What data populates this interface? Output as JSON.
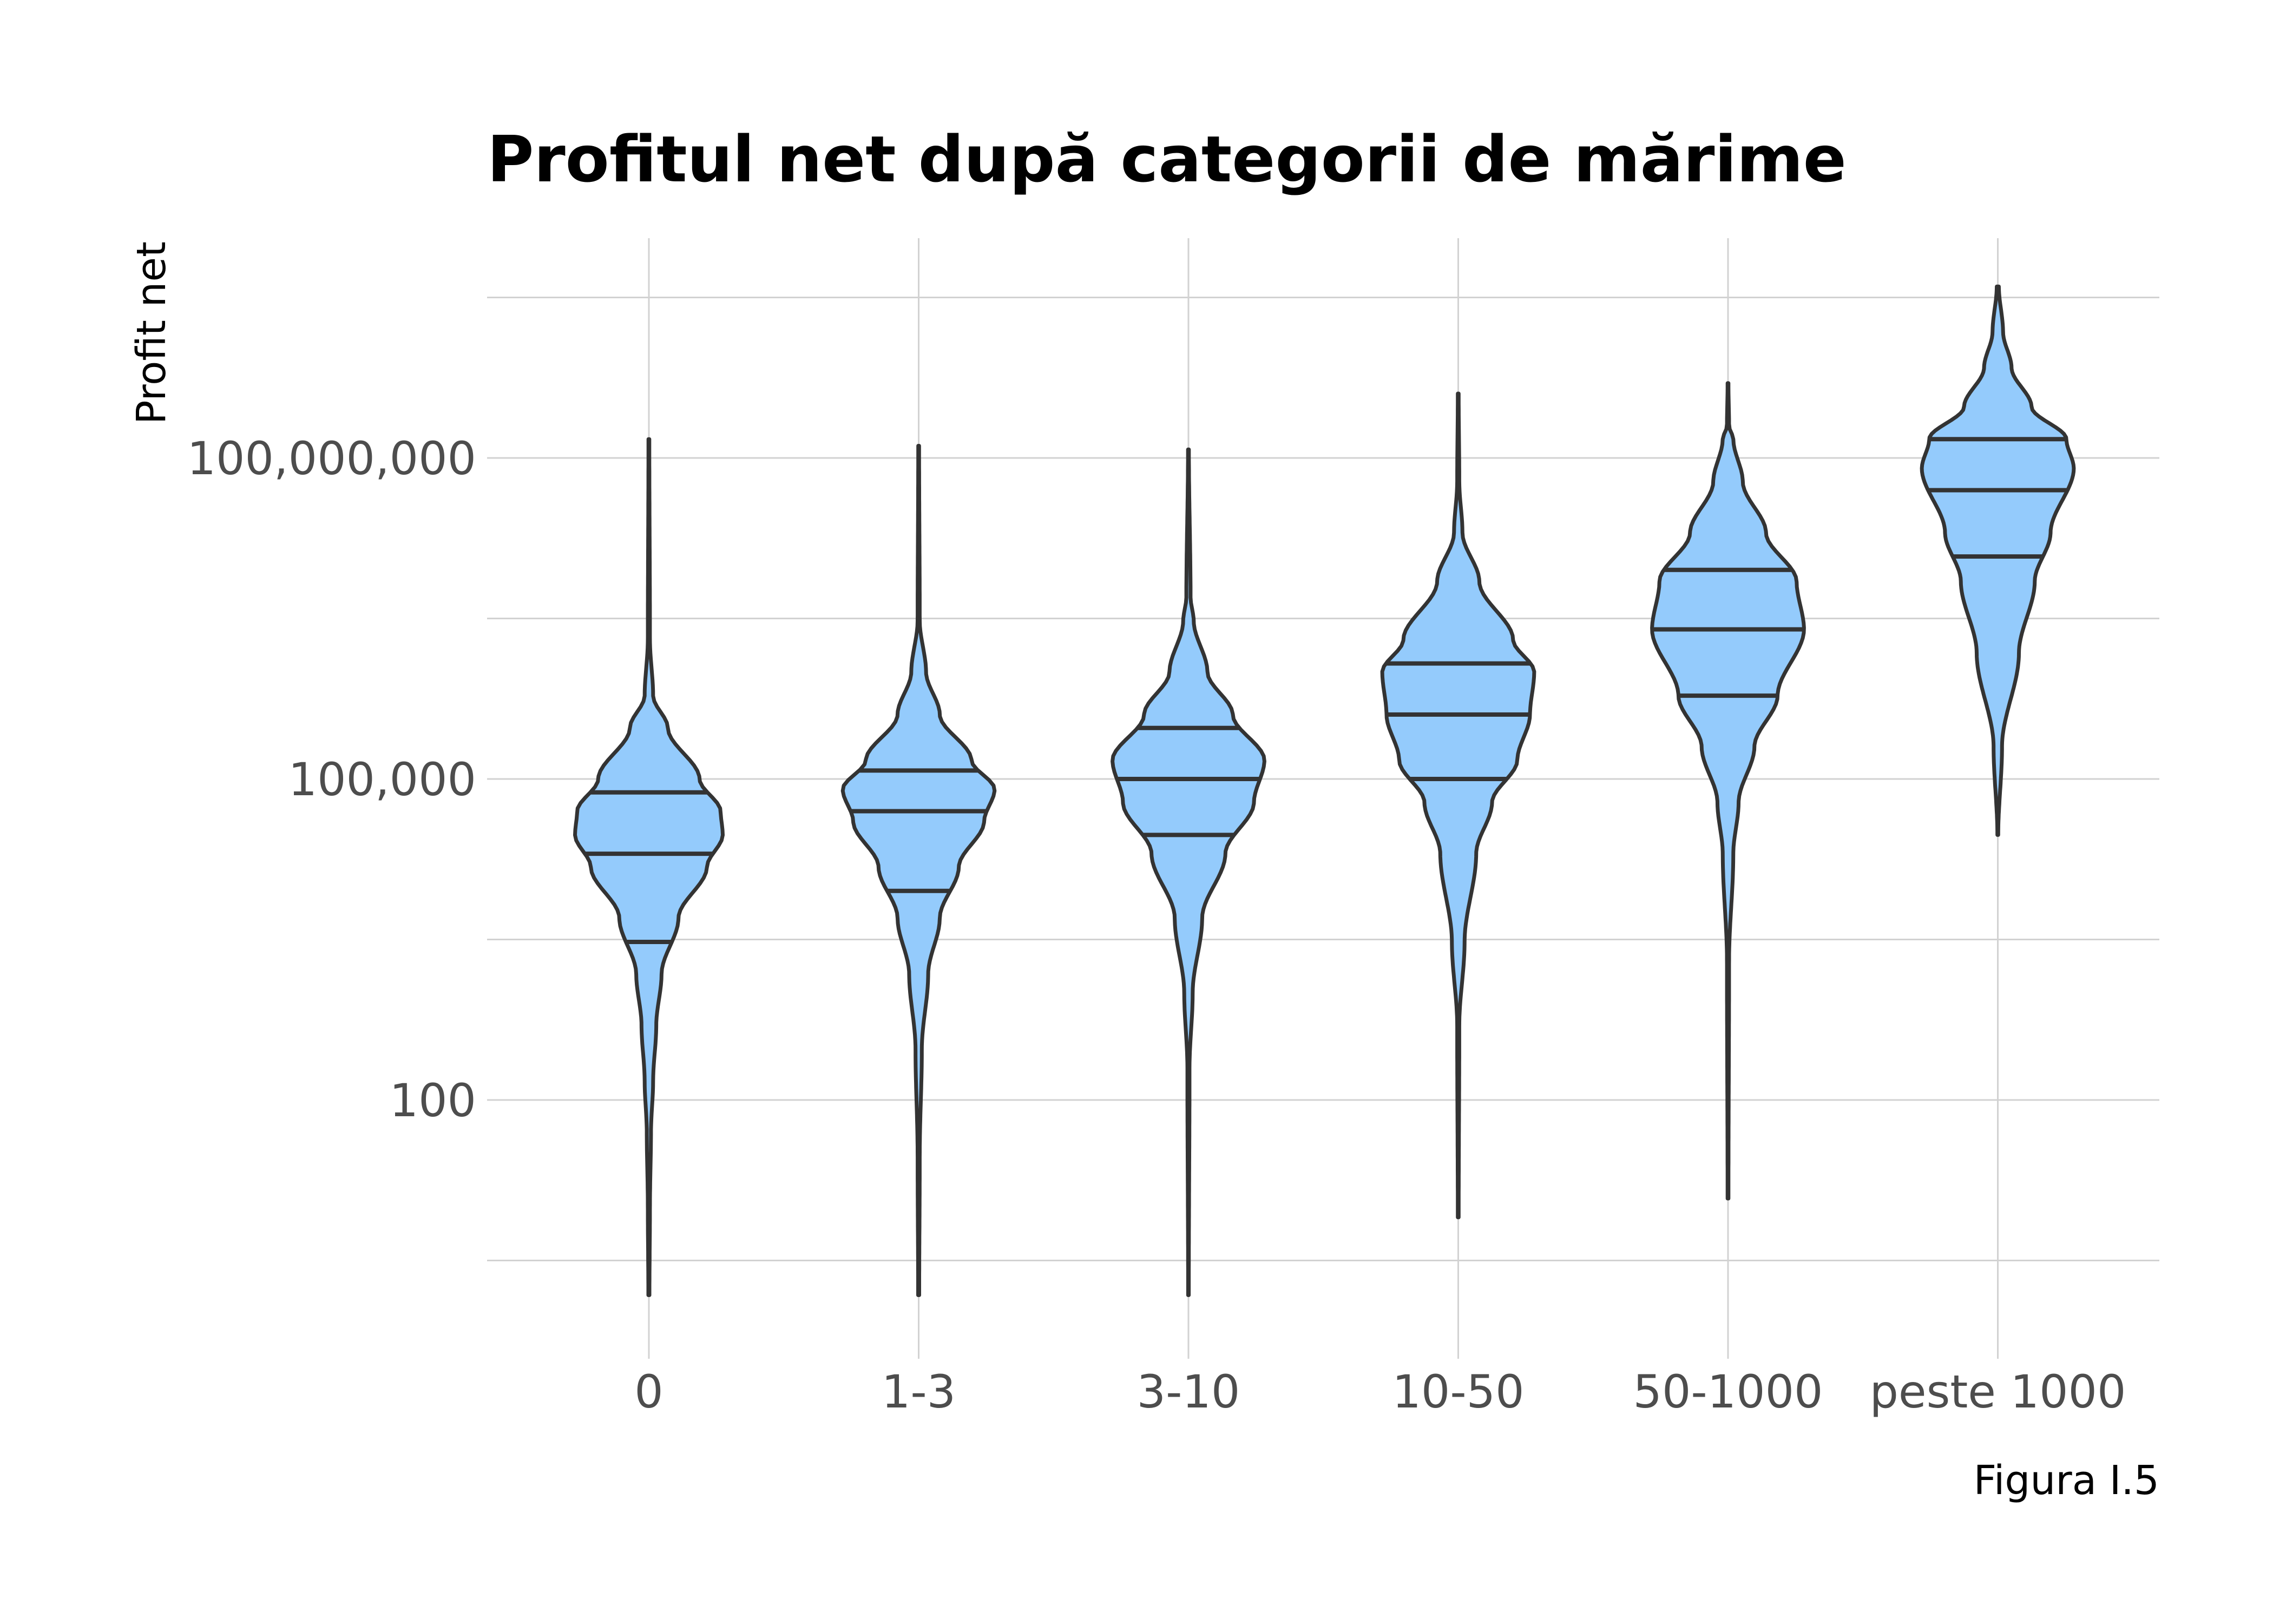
{
  "chart_data": {
    "type": "violin",
    "title": "Profitul net după categorii de mărime",
    "xlabel": "",
    "ylabel": "Profit net",
    "caption": "Figura I.5",
    "y_scale": "log10",
    "ylim": [
      3,
      1000000000
    ],
    "y_ticks": [
      {
        "value": 100,
        "label": "100"
      },
      {
        "value": 100000,
        "label": "100,000"
      },
      {
        "value": 100000000,
        "label": "100,000,000"
      }
    ],
    "y_minor_grid": [
      3.16,
      3162,
      3162000,
      3162000000
    ],
    "grid": true,
    "legend": "none",
    "fill_color": "#94cbfc",
    "outline_color": "#333333",
    "categories": [
      "0",
      "1-3",
      "3-10",
      "10-50",
      "50-1000",
      "peste 1000"
    ],
    "series": [
      {
        "category": "0",
        "min": 1.5,
        "max": 150000000,
        "quantiles": [
          3000,
          20000,
          75000
        ],
        "width_profile": [
          [
            1.5,
            0.005
          ],
          [
            10,
            0.01
          ],
          [
            50,
            0.02
          ],
          [
            150,
            0.04
          ],
          [
            500,
            0.07
          ],
          [
            1500,
            0.12
          ],
          [
            5000,
            0.28
          ],
          [
            15000,
            0.55
          ],
          [
            30000,
            0.7
          ],
          [
            50000,
            0.68
          ],
          [
            100000,
            0.48
          ],
          [
            300000,
            0.18
          ],
          [
            600000,
            0.04
          ],
          [
            2000000,
            0.01
          ],
          [
            150000000,
            0.004
          ]
        ]
      },
      {
        "category": "1-3",
        "min": 1.5,
        "max": 130000000,
        "quantiles": [
          9000,
          50000,
          120000
        ],
        "width_profile": [
          [
            1.5,
            0.005
          ],
          [
            30,
            0.01
          ],
          [
            300,
            0.03
          ],
          [
            1500,
            0.09
          ],
          [
            5000,
            0.2
          ],
          [
            15000,
            0.38
          ],
          [
            40000,
            0.62
          ],
          [
            80000,
            0.72
          ],
          [
            150000,
            0.5
          ],
          [
            400000,
            0.2
          ],
          [
            1000000,
            0.07
          ],
          [
            3000000,
            0.01
          ],
          [
            130000000,
            0.004
          ]
        ]
      },
      {
        "category": "3-10",
        "min": 1.5,
        "max": 120000000,
        "quantiles": [
          30000,
          100000,
          300000
        ],
        "width_profile": [
          [
            1.5,
            0.003
          ],
          [
            200,
            0.01
          ],
          [
            1000,
            0.04
          ],
          [
            5000,
            0.13
          ],
          [
            20000,
            0.35
          ],
          [
            60000,
            0.62
          ],
          [
            150000,
            0.72
          ],
          [
            400000,
            0.42
          ],
          [
            1000000,
            0.18
          ],
          [
            3000000,
            0.05
          ],
          [
            5000000,
            0.02
          ],
          [
            120000000,
            0.004
          ]
        ]
      },
      {
        "category": "10-50",
        "min": 8,
        "max": 400000000,
        "quantiles": [
          100000,
          400000,
          1200000
        ],
        "width_profile": [
          [
            8,
            0.004
          ],
          [
            500,
            0.01
          ],
          [
            3000,
            0.06
          ],
          [
            20000,
            0.17
          ],
          [
            60000,
            0.32
          ],
          [
            150000,
            0.56
          ],
          [
            400000,
            0.68
          ],
          [
            1000000,
            0.72
          ],
          [
            2000000,
            0.52
          ],
          [
            7000000,
            0.2
          ],
          [
            20000000,
            0.04
          ],
          [
            60000000,
            0.01
          ],
          [
            400000000,
            0.004
          ]
        ]
      },
      {
        "category": "50-1000",
        "min": 12,
        "max": 500000000,
        "quantiles": [
          600000,
          2500000,
          9000000
        ],
        "width_profile": [
          [
            12,
            0.004
          ],
          [
            2000,
            0.01
          ],
          [
            20000,
            0.05
          ],
          [
            60000,
            0.1
          ],
          [
            200000,
            0.25
          ],
          [
            600000,
            0.47
          ],
          [
            2500000,
            0.72
          ],
          [
            7000000,
            0.65
          ],
          [
            20000000,
            0.36
          ],
          [
            60000000,
            0.14
          ],
          [
            150000000,
            0.05
          ],
          [
            200000000,
            0.01
          ],
          [
            500000000,
            0.004
          ]
        ]
      },
      {
        "category": "peste 1000",
        "min": 30000,
        "max": 4000000000,
        "quantiles": [
          12000000,
          50000000,
          150000000
        ],
        "width_profile": [
          [
            30000,
            0.004
          ],
          [
            200000,
            0.04
          ],
          [
            1500000,
            0.2
          ],
          [
            7000000,
            0.35
          ],
          [
            20000000,
            0.5
          ],
          [
            80000000,
            0.72
          ],
          [
            150000000,
            0.65
          ],
          [
            300000000,
            0.32
          ],
          [
            700000000,
            0.13
          ],
          [
            1500000000,
            0.05
          ],
          [
            4000000000,
            0.01
          ]
        ]
      }
    ]
  }
}
